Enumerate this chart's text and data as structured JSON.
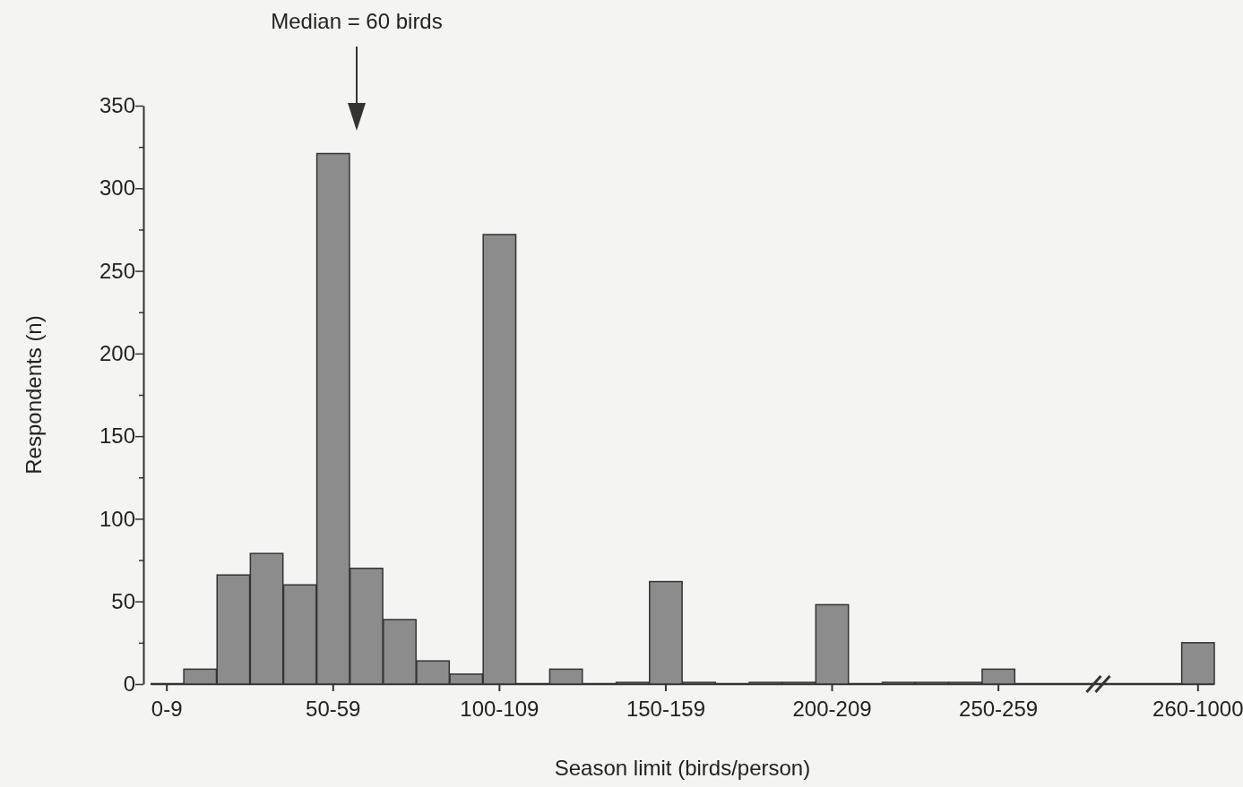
{
  "chart_data": {
    "type": "bar",
    "xlabel": "Season limit (birds/person)",
    "ylabel": "Respondents (n)",
    "categories": [
      "0-9",
      null,
      null,
      null,
      null,
      "50-59",
      null,
      null,
      null,
      null,
      "100-109",
      null,
      null,
      null,
      null,
      "150-159",
      null,
      null,
      null,
      null,
      "200-209",
      null,
      null,
      null,
      null,
      "250-259",
      null,
      null,
      null,
      null,
      null,
      "260-1000"
    ],
    "values": [
      0,
      9,
      66,
      79,
      60,
      321,
      70,
      39,
      14,
      6,
      272,
      0,
      9,
      0,
      1,
      62,
      1,
      0,
      1,
      1,
      48,
      0,
      1,
      1,
      1,
      9,
      null,
      null,
      null,
      null,
      null,
      25
    ],
    "color": "#8c8c8c",
    "ylim": [
      0,
      350
    ],
    "yticks": [
      0,
      {
        "value": 25,
        "label": null
      },
      50,
      {
        "value": 75,
        "label": null
      },
      100,
      {
        "value": 125,
        "label": null
      },
      150,
      {
        "value": 175,
        "label": null
      },
      200,
      {
        "value": 225,
        "label": null
      },
      250,
      {
        "value": 275,
        "label": null
      },
      300,
      {
        "value": 325,
        "label": null
      },
      350
    ],
    "grid": false,
    "annotations": [
      "Median = 60 birds"
    ]
  }
}
